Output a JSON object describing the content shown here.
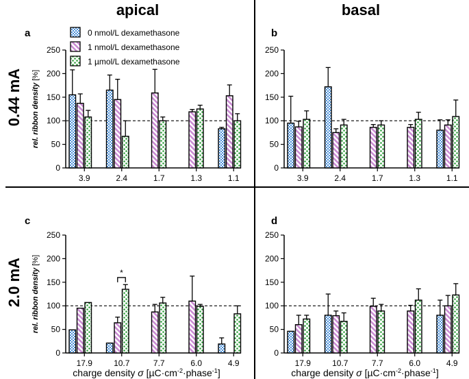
{
  "columns": [
    "apical",
    "basal"
  ],
  "rows": [
    "0.44 mA",
    "2.0 mA"
  ],
  "legend": [
    {
      "label": "0 nmol/L dexamethasone",
      "color": "#4a90d9",
      "pattern": "squares"
    },
    {
      "label": "1 nmol/L dexamethasone",
      "color": "#d9a6df",
      "pattern": "stripes"
    },
    {
      "label": "1 µmol/L dexamethasone",
      "color": "#3cb043",
      "pattern": "dots"
    }
  ],
  "colors": {
    "blue": "#4a90d9",
    "pink": "#d9a6df",
    "green": "#2e9e3a",
    "grid": "#ffffff",
    "axis": "#000000"
  },
  "ylabel": "rel. ribbon density",
  "ylabel_unit": "[%]",
  "xlabel_prefix": "charge density ",
  "xlabel_symbol": "σ",
  "xlabel_unit": "[µC·cm",
  "xlabel_exp1": "-2",
  "xlabel_mid": "·phase",
  "xlabel_exp2": "-1",
  "xlabel_end": "]",
  "yticks": [
    "0",
    "50",
    "100",
    "150",
    "200",
    "250"
  ],
  "significance": "*",
  "chart_data": [
    {
      "type": "bar",
      "panel": "a",
      "column": "apical",
      "row": "0.44 mA",
      "categories": [
        "3.9",
        "2.4",
        "1.7",
        "1.3",
        "1.1"
      ],
      "ylim": [
        0,
        250
      ],
      "reference_line": 100,
      "series": [
        {
          "name": "0 nmol/L dexamethasone",
          "values": [
            155,
            165,
            null,
            null,
            83
          ],
          "errors": [
            53,
            32,
            null,
            null,
            3
          ]
        },
        {
          "name": "1 nmol/L dexamethasone",
          "values": [
            137,
            145,
            159,
            119,
            153
          ],
          "errors": [
            20,
            43,
            50,
            5,
            23
          ]
        },
        {
          "name": "1 µmol/L dexamethasone",
          "values": [
            108,
            67,
            100,
            125,
            100
          ],
          "errors": [
            14,
            33,
            8,
            8,
            15
          ]
        }
      ]
    },
    {
      "type": "bar",
      "panel": "b",
      "column": "basal",
      "row": "0.44 mA",
      "categories": [
        "3.9",
        "2.4",
        "1.7",
        "1.3",
        "1.1"
      ],
      "ylim": [
        0,
        250
      ],
      "reference_line": 100,
      "series": [
        {
          "name": "0 nmol/L dexamethasone",
          "values": [
            95,
            172,
            null,
            null,
            80
          ],
          "errors": [
            57,
            41,
            null,
            null,
            22
          ]
        },
        {
          "name": "1 nmol/L dexamethasone",
          "values": [
            87,
            75,
            86,
            86,
            91
          ],
          "errors": [
            12,
            8,
            6,
            6,
            11
          ]
        },
        {
          "name": "1 µmol/L dexamethasone",
          "values": [
            103,
            91,
            91,
            103,
            109
          ],
          "errors": [
            18,
            12,
            9,
            15,
            35
          ]
        }
      ]
    },
    {
      "type": "bar",
      "panel": "c",
      "column": "apical",
      "row": "2.0 mA",
      "categories": [
        "17.9",
        "10.7",
        "7.7",
        "6.0",
        "4.9"
      ],
      "ylim": [
        0,
        250
      ],
      "reference_line": 100,
      "significance": {
        "from": "1 nmol/L dexamethasone",
        "to": "1 µmol/L dexamethasone",
        "category": "10.7",
        "label": "*"
      },
      "series": [
        {
          "name": "0 nmol/L dexamethasone",
          "values": [
            49,
            21,
            null,
            null,
            19
          ],
          "errors": [
            0,
            0,
            null,
            null,
            13
          ]
        },
        {
          "name": "1 nmol/L dexamethasone",
          "values": [
            95,
            64,
            87,
            110,
            null
          ],
          "errors": [
            0,
            12,
            16,
            53,
            null
          ]
        },
        {
          "name": "1 µmol/L dexamethasone",
          "values": [
            107,
            135,
            106,
            99,
            83
          ],
          "errors": [
            0,
            10,
            12,
            4,
            17
          ]
        }
      ]
    },
    {
      "type": "bar",
      "panel": "d",
      "column": "basal",
      "row": "2.0 mA",
      "categories": [
        "17.9",
        "10.7",
        "7.7",
        "6.0",
        "4.9"
      ],
      "ylim": [
        0,
        250
      ],
      "reference_line": 100,
      "series": [
        {
          "name": "0 nmol/L dexamethasone",
          "values": [
            46,
            80,
            null,
            null,
            80
          ],
          "errors": [
            0,
            45,
            null,
            null,
            32
          ]
        },
        {
          "name": "1 nmol/L dexamethasone",
          "values": [
            60,
            79,
            99,
            89,
            100
          ],
          "errors": [
            20,
            10,
            17,
            12,
            22
          ]
        },
        {
          "name": "1 µmol/L dexamethasone",
          "values": [
            72,
            67,
            89,
            112,
            123
          ],
          "errors": [
            8,
            18,
            14,
            24,
            24
          ]
        }
      ]
    }
  ]
}
